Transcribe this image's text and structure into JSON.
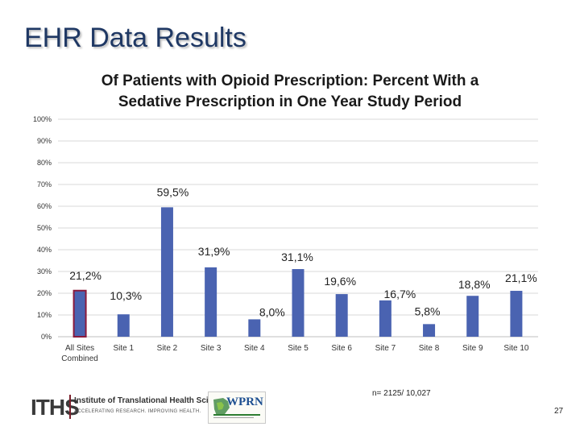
{
  "slide": {
    "title": "EHR Data Results",
    "note": "n= 2125/ 10,027",
    "page_number": "27"
  },
  "logos": {
    "iths_letters": "ITHS",
    "iths_name": "Institute of Translational Health Sciences",
    "iths_tagline": "ACCELERATING RESEARCH. IMPROVING HEALTH.",
    "wprn": "WPRN"
  },
  "colors": {
    "bar": "#4a63b1",
    "highlight_bar": "#8b1a3c",
    "grid": "#d9d9d9",
    "title": "#1f3864"
  },
  "chart_data": {
    "type": "bar",
    "title_line1": "Of Patients with Opioid Prescription: Percent With a",
    "title_line2": "Sedative Prescription in One Year Study Period",
    "categories": [
      "All Sites Combined",
      "Site 1",
      "Site 2",
      "Site 3",
      "Site 4",
      "Site 5",
      "Site 6",
      "Site 7",
      "Site 8",
      "Site 9",
      "Site 10"
    ],
    "values": [
      21.2,
      10.3,
      59.5,
      31.9,
      8.0,
      31.1,
      19.6,
      16.7,
      5.8,
      18.8,
      21.1
    ],
    "data_labels": [
      "21,2%",
      "10,3%",
      "59,5%",
      "31,9%",
      "8,0%",
      "31,1%",
      "19,6%",
      "16,7%",
      "5,8%",
      "18,8%",
      "21,1%"
    ],
    "y_ticks": [
      "0%",
      "10%",
      "20%",
      "30%",
      "40%",
      "50%",
      "60%",
      "70%",
      "80%",
      "90%",
      "100%"
    ],
    "ylim": [
      0,
      100
    ],
    "highlight_index": 0,
    "grid": true,
    "xlabel": "",
    "ylabel": ""
  }
}
